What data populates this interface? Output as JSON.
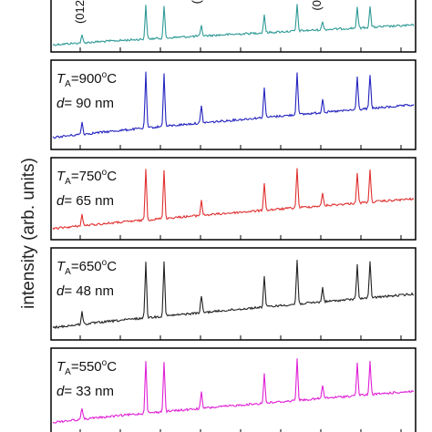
{
  "chart_data": {
    "type": "line",
    "ylabel": "intensity (arb. units)",
    "xlabel": "",
    "panels": [
      {
        "name": "top",
        "color": "#2e9a96",
        "temperature": "",
        "thickness": "",
        "peak_labels": [
          {
            "text": "(012",
            "x": 92
          },
          {
            "text": "(",
            "x": 220
          },
          {
            "text": "(0",
            "x": 352
          }
        ]
      },
      {
        "name": "900C",
        "color": "#2323c0",
        "temperature": "900",
        "thickness": "90",
        "peak_labels": []
      },
      {
        "name": "750C",
        "color": "#e03030",
        "temperature": "750",
        "thickness": "65",
        "peak_labels": []
      },
      {
        "name": "650C",
        "color": "#222222",
        "temperature": "650",
        "thickness": "48",
        "peak_labels": []
      },
      {
        "name": "550C",
        "color": "#e020d6",
        "temperature": "550",
        "thickness": "33",
        "peak_labels": []
      }
    ],
    "peaks": [
      {
        "x": 90,
        "height": 0.22
      },
      {
        "x": 160,
        "height": 1.0
      },
      {
        "x": 180,
        "height": 0.95
      },
      {
        "x": 221,
        "height": 0.3
      },
      {
        "x": 290,
        "height": 0.55
      },
      {
        "x": 326,
        "height": 0.78
      },
      {
        "x": 354,
        "height": 0.25
      },
      {
        "x": 392,
        "height": 0.6
      },
      {
        "x": 406,
        "height": 0.62
      }
    ],
    "legend_labels": {
      "t_symbol": "T",
      "t_sub": "A",
      "t_unit_sup": "o",
      "t_unit": "C",
      "d_symbol": "d",
      "d_unit": "nm"
    }
  }
}
